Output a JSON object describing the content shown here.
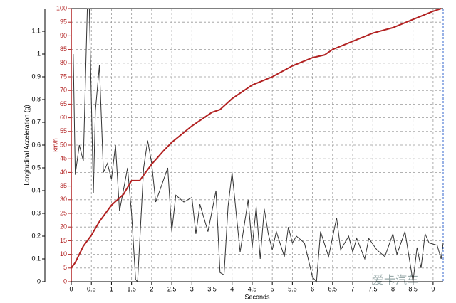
{
  "chart_data": {
    "type": "line",
    "x_label": "Seconds",
    "y_label": "Longitudinal Acceleration (g)",
    "y2_label": "km/h",
    "watermark": "爱卡汽车",
    "xlim": [
      0,
      9.25
    ],
    "xticks": [
      0,
      0.5,
      1,
      1.5,
      2,
      2.5,
      3,
      3.5,
      4,
      4.5,
      5,
      5.5,
      6,
      6.5,
      7,
      7.5,
      8,
      8.5,
      9
    ],
    "ylim": [
      0,
      1.2
    ],
    "yticks": [
      0,
      0.1,
      0.2,
      0.3,
      0.4,
      0.5,
      0.6,
      0.7,
      0.8,
      0.9,
      1,
      1.1
    ],
    "y2lim": [
      0,
      100
    ],
    "y2ticks": [
      0,
      5,
      10,
      15,
      20,
      25,
      30,
      35,
      40,
      45,
      50,
      55,
      60,
      65,
      70,
      75,
      80,
      85,
      90,
      95,
      100
    ],
    "grid": true,
    "series": [
      {
        "color": "#333333",
        "x": [
          0.05,
          0.1,
          0.2,
          0.3,
          0.4,
          0.45,
          0.55,
          0.6,
          0.7,
          0.8,
          0.9,
          1.0,
          1.1,
          1.2,
          1.4,
          1.5,
          1.6,
          1.65,
          1.8,
          1.9,
          2.0,
          2.1,
          2.3,
          2.4,
          2.5,
          2.6,
          2.8,
          3.0,
          3.1,
          3.2,
          3.4,
          3.6,
          3.7,
          3.8,
          3.9,
          4.0,
          4.2,
          4.4,
          4.5,
          4.6,
          4.7,
          4.8,
          4.9,
          5.0,
          5.1,
          5.3,
          5.4,
          5.5,
          5.6,
          5.8,
          6.0,
          6.1,
          6.2,
          6.4,
          6.6,
          6.7,
          6.9,
          7.0,
          7.1,
          7.3,
          7.4,
          7.6,
          7.8,
          8.0,
          8.1,
          8.3,
          8.4,
          8.5,
          8.6,
          8.7,
          8.8,
          8.9,
          9.1,
          9.2,
          9.25
        ],
        "values": [
          1.0,
          0.47,
          0.6,
          0.53,
          1.2,
          1.2,
          0.39,
          0.75,
          0.95,
          0.48,
          0.52,
          0.45,
          0.6,
          0.31,
          0.5,
          0.3,
          0.01,
          0.0,
          0.5,
          0.62,
          0.52,
          0.35,
          0.45,
          0.5,
          0.22,
          0.38,
          0.35,
          0.37,
          0.21,
          0.34,
          0.22,
          0.4,
          0.04,
          0.03,
          0.33,
          0.48,
          0.13,
          0.36,
          0.15,
          0.33,
          0.1,
          0.32,
          0.21,
          0.14,
          0.22,
          0.11,
          0.24,
          0.17,
          0.2,
          0.17,
          0.02,
          0.0,
          0.22,
          0.11,
          0.28,
          0.14,
          0.2,
          0.13,
          0.19,
          0.1,
          0.19,
          0.14,
          0.11,
          0.21,
          0.12,
          0.22,
          0.11,
          0.0,
          0.15,
          0.06,
          0.21,
          0.17,
          0.16,
          0.1,
          0.17
        ]
      },
      {
        "color": "#b22222",
        "axis": "y2",
        "x": [
          0,
          0.1,
          0.2,
          0.3,
          0.5,
          0.7,
          1.0,
          1.3,
          1.5,
          1.7,
          2.0,
          2.3,
          2.5,
          3.0,
          3.5,
          3.7,
          4.0,
          4.5,
          5.0,
          5.5,
          6.0,
          6.3,
          6.5,
          7.0,
          7.5,
          8.0,
          8.5,
          9.0,
          9.2
        ],
        "values": [
          5,
          7,
          10,
          13,
          17,
          22,
          28,
          32,
          37,
          37,
          43,
          48,
          51,
          57,
          62,
          63,
          67,
          72,
          75,
          79,
          82,
          83,
          85,
          88,
          91,
          93,
          96,
          99,
          100
        ]
      }
    ]
  }
}
